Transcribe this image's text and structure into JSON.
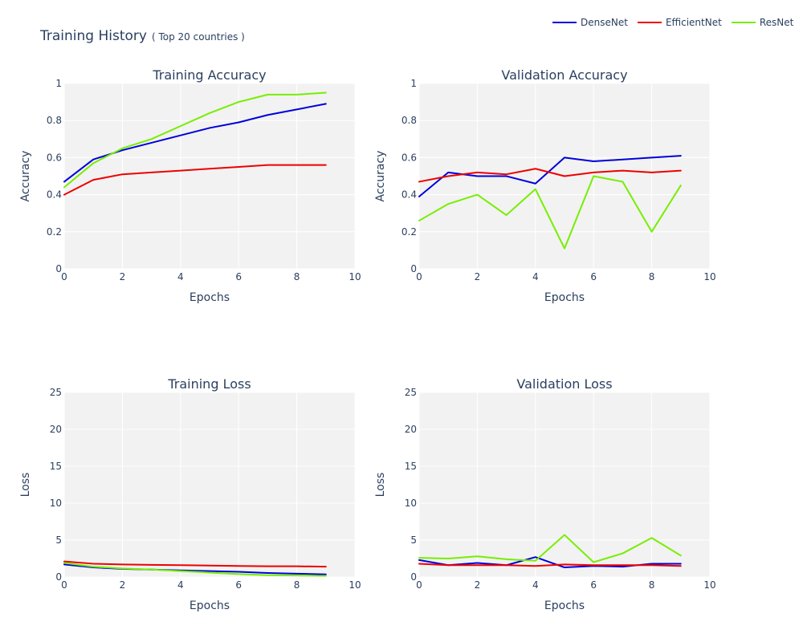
{
  "title": "Training History",
  "subtitle": "( Top 20 countries )",
  "legend": [
    {
      "name": "DenseNet",
      "color": "#0000dd"
    },
    {
      "name": "EfficientNet",
      "color": "#ee0000"
    },
    {
      "name": "ResNet",
      "color": "#77ee00"
    }
  ],
  "chart_data": [
    {
      "type": "line",
      "title": "Training Accuracy",
      "xlabel": "Epochs",
      "ylabel": "Accuracy",
      "xlim": [
        0,
        10
      ],
      "ylim": [
        0,
        1
      ],
      "x_ticks": [
        "0",
        "2",
        "4",
        "6",
        "8",
        "10"
      ],
      "y_ticks": [
        "0",
        "0.2",
        "0.4",
        "0.6",
        "0.8",
        "1"
      ],
      "grid": true,
      "x": [
        0,
        1,
        2,
        3,
        4,
        5,
        6,
        7,
        8,
        9
      ],
      "series": [
        {
          "name": "DenseNet",
          "color": "#0000dd",
          "values": [
            0.47,
            0.59,
            0.64,
            0.68,
            0.72,
            0.76,
            0.79,
            0.83,
            0.86,
            0.89
          ]
        },
        {
          "name": "EfficientNet",
          "color": "#ee0000",
          "values": [
            0.4,
            0.48,
            0.51,
            0.52,
            0.53,
            0.54,
            0.55,
            0.56,
            0.56,
            0.56
          ]
        },
        {
          "name": "ResNet",
          "color": "#77ee00",
          "values": [
            0.44,
            0.57,
            0.65,
            0.7,
            0.77,
            0.84,
            0.9,
            0.94,
            0.94,
            0.95
          ]
        }
      ]
    },
    {
      "type": "line",
      "title": "Validation Accuracy",
      "xlabel": "Epochs",
      "ylabel": "Accuracy",
      "xlim": [
        0,
        10
      ],
      "ylim": [
        0,
        1
      ],
      "x_ticks": [
        "0",
        "2",
        "4",
        "6",
        "8",
        "10"
      ],
      "y_ticks": [
        "0",
        "0.2",
        "0.4",
        "0.6",
        "0.8",
        "1"
      ],
      "grid": true,
      "x": [
        0,
        1,
        2,
        3,
        4,
        5,
        6,
        7,
        8,
        9
      ],
      "series": [
        {
          "name": "DenseNet",
          "color": "#0000dd",
          "values": [
            0.39,
            0.52,
            0.5,
            0.5,
            0.46,
            0.6,
            0.58,
            0.59,
            0.6,
            0.61
          ]
        },
        {
          "name": "EfficientNet",
          "color": "#ee0000",
          "values": [
            0.47,
            0.5,
            0.52,
            0.51,
            0.54,
            0.5,
            0.52,
            0.53,
            0.52,
            0.53
          ]
        },
        {
          "name": "ResNet",
          "color": "#77ee00",
          "values": [
            0.26,
            0.35,
            0.4,
            0.29,
            0.43,
            0.11,
            0.5,
            0.47,
            0.2,
            0.45
          ]
        }
      ]
    },
    {
      "type": "line",
      "title": "Training Loss",
      "xlabel": "Epochs",
      "ylabel": "Loss",
      "xlim": [
        0,
        10
      ],
      "ylim": [
        0,
        25
      ],
      "x_ticks": [
        "0",
        "2",
        "4",
        "6",
        "8",
        "10"
      ],
      "y_ticks": [
        "0",
        "5",
        "10",
        "15",
        "20",
        "25"
      ],
      "grid": true,
      "x": [
        0,
        1,
        2,
        3,
        4,
        5,
        6,
        7,
        8,
        9
      ],
      "series": [
        {
          "name": "DenseNet",
          "color": "#0000dd",
          "values": [
            1.7,
            1.3,
            1.1,
            1.0,
            0.9,
            0.8,
            0.7,
            0.55,
            0.45,
            0.35
          ]
        },
        {
          "name": "EfficientNet",
          "color": "#ee0000",
          "values": [
            2.1,
            1.8,
            1.7,
            1.65,
            1.6,
            1.55,
            1.5,
            1.45,
            1.45,
            1.4
          ]
        },
        {
          "name": "ResNet",
          "color": "#77ee00",
          "values": [
            1.9,
            1.4,
            1.15,
            1.0,
            0.8,
            0.6,
            0.4,
            0.25,
            0.2,
            0.15
          ]
        }
      ]
    },
    {
      "type": "line",
      "title": "Validation Loss",
      "xlabel": "Epochs",
      "ylabel": "Loss",
      "xlim": [
        0,
        10
      ],
      "ylim": [
        0,
        25
      ],
      "x_ticks": [
        "0",
        "2",
        "4",
        "6",
        "8",
        "10"
      ],
      "y_ticks": [
        "0",
        "5",
        "10",
        "15",
        "20",
        "25"
      ],
      "grid": true,
      "x": [
        0,
        1,
        2,
        3,
        4,
        5,
        6,
        7,
        8,
        9
      ],
      "series": [
        {
          "name": "DenseNet",
          "color": "#0000dd",
          "values": [
            2.3,
            1.6,
            1.9,
            1.6,
            2.7,
            1.3,
            1.5,
            1.4,
            1.8,
            1.8
          ]
        },
        {
          "name": "EfficientNet",
          "color": "#ee0000",
          "values": [
            1.8,
            1.6,
            1.6,
            1.6,
            1.5,
            1.7,
            1.6,
            1.6,
            1.6,
            1.5
          ]
        },
        {
          "name": "ResNet",
          "color": "#77ee00",
          "values": [
            2.6,
            2.5,
            2.8,
            2.4,
            2.2,
            5.7,
            2.0,
            3.2,
            5.3,
            2.9
          ]
        }
      ]
    }
  ]
}
